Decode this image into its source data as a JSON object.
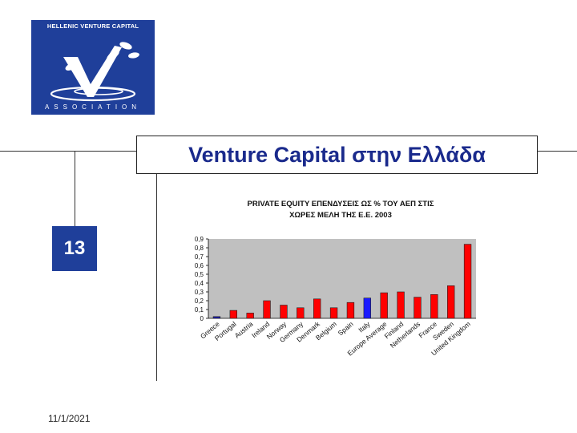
{
  "logo": {
    "top_text": "HELLENIC VENTURE CAPITAL",
    "bottom_text": "ASSOCIATION",
    "colors": {
      "background": "#1f3f9a",
      "art": "#ffffff"
    }
  },
  "slide": {
    "title": "Venture Capital στην Ελλάδα",
    "number": "13",
    "date": "11/1/2021"
  },
  "chart_data": {
    "type": "bar",
    "title": "PRIVATE EQUITY ΕΠΕΝΔΥΣΕΙΣ ΩΣ % ΤΟΥ ΑΕΠ ΣΤΙΣ ΧΩΡΕΣ ΜΕΛΗ ΤΗΣ Ε.Ε. 2003",
    "title_lines": [
      "PRIVATE EQUITY ΕΠΕΝΔΥΣΕΙΣ ΩΣ % ΤΟΥ ΑΕΠ ΣΤΙΣ",
      "ΧΩΡΕΣ ΜΕΛΗ ΤΗΣ Ε.Ε.  2003"
    ],
    "categories": [
      "Greece",
      "Portugal",
      "Austria",
      "Ireland",
      "Norway",
      "Germany",
      "Denmark",
      "Belgium",
      "Spain",
      "Italy",
      "Europe Average",
      "Finland",
      "Netherlands",
      "France",
      "Sweden",
      "United Kingdom"
    ],
    "values": [
      0.02,
      0.09,
      0.06,
      0.2,
      0.15,
      0.12,
      0.22,
      0.12,
      0.18,
      0.23,
      0.29,
      0.3,
      0.24,
      0.27,
      0.37,
      0.84
    ],
    "bar_colors": [
      "#1a1aa8",
      "#ff0000",
      "#ff0000",
      "#ff0000",
      "#ff0000",
      "#ff0000",
      "#ff0000",
      "#ff0000",
      "#ff0000",
      "#1a1aff",
      "#ff0000",
      "#ff0000",
      "#ff0000",
      "#ff0000",
      "#ff0000",
      "#ff0000"
    ],
    "yticks": [
      "0",
      "0,1",
      "0,2",
      "0,3",
      "0,4",
      "0,5",
      "0,6",
      "0,7",
      "0,8",
      "0,9"
    ],
    "ylim": [
      0,
      0.9
    ],
    "plot_background": "#c0c0c0",
    "grid": false,
    "legend": "none"
  }
}
